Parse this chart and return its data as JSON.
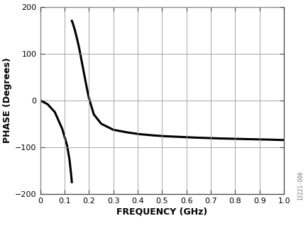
{
  "title": "",
  "xlabel": "FREQUENCY (GHz)",
  "ylabel": "PHASE (Degrees)",
  "xlim": [
    0,
    1.0
  ],
  "ylim": [
    -200,
    200
  ],
  "yticks": [
    -200,
    -100,
    0,
    100,
    200
  ],
  "xticks": [
    0,
    0.1,
    0.2,
    0.3,
    0.4,
    0.5,
    0.6,
    0.7,
    0.8,
    0.9,
    1.0
  ],
  "xtick_labels": [
    "0",
    "0.1",
    "0.2",
    "0.3",
    "0.4",
    "0.5",
    "0.6",
    "0.7",
    "0.8",
    "0.9",
    "1.0"
  ],
  "line_color": "#000000",
  "line_width": 2.2,
  "background_color": "#ffffff",
  "grid_color": "#999999",
  "watermark": "13221-006",
  "xlabel_fontsize": 9,
  "ylabel_fontsize": 9,
  "tick_fontsize": 8,
  "seg1_x": [
    0.0,
    0.03,
    0.06,
    0.09,
    0.11,
    0.12,
    0.125,
    0.128,
    0.13
  ],
  "seg1_y": [
    0.0,
    -8.0,
    -25.0,
    -60.0,
    -95.0,
    -125.0,
    -148.0,
    -163.0,
    -175.0
  ],
  "seg2_x": [
    0.13,
    0.132,
    0.135,
    0.14,
    0.15,
    0.16,
    0.17,
    0.18,
    0.19,
    0.2,
    0.22,
    0.25,
    0.3,
    0.35,
    0.4,
    0.45,
    0.5,
    0.6,
    0.7,
    0.8,
    0.9,
    1.0
  ],
  "seg2_y": [
    170.0,
    168.0,
    163.0,
    155.0,
    135.0,
    112.0,
    85.0,
    58.0,
    30.0,
    5.0,
    -30.0,
    -50.0,
    -63.0,
    -68.0,
    -72.0,
    -74.5,
    -76.5,
    -79.0,
    -81.0,
    -82.5,
    -83.5,
    -85.0
  ]
}
